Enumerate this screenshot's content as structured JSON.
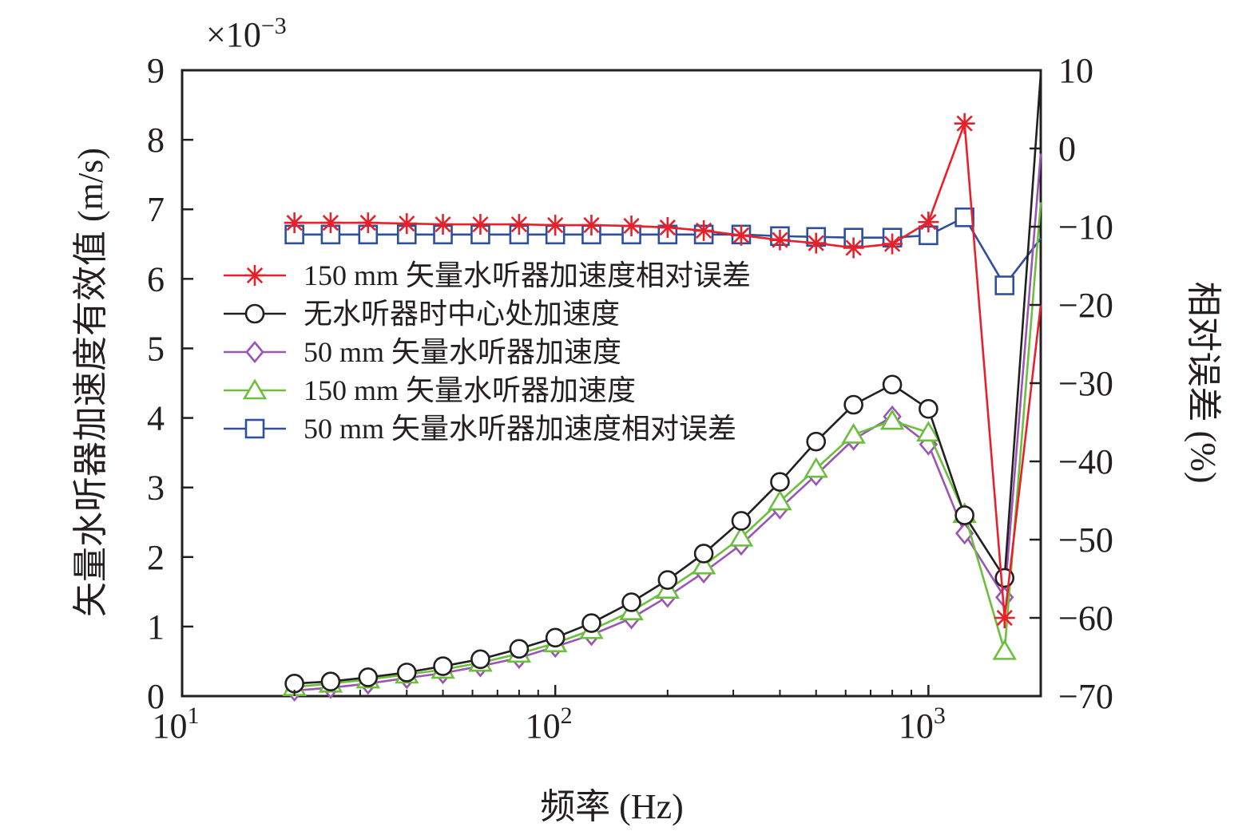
{
  "chart_data": {
    "type": "line",
    "xlabel": "频率 (Hz)",
    "ylabel_left": "矢量水听器加速度有效值 (m/s)",
    "ylabel_right": "相对误差 (%)",
    "y_left_multiplier": {
      "base": "×10",
      "exponent": "−3"
    },
    "x_scale": "log",
    "xlim": [
      10,
      2000
    ],
    "ylim_left": [
      0,
      9
    ],
    "ylim_right": [
      -70,
      10
    ],
    "x_ticks": [
      {
        "value": 10,
        "base": "10",
        "exp": "1"
      },
      {
        "value": 100,
        "base": "10",
        "exp": "2"
      },
      {
        "value": 1000,
        "base": "10",
        "exp": "3"
      }
    ],
    "y_left_ticks": [
      "0",
      "1",
      "2",
      "3",
      "4",
      "5",
      "6",
      "7",
      "8",
      "9"
    ],
    "y_right_ticks": [
      "10",
      "0",
      "−10",
      "−20",
      "−30",
      "−40",
      "−50",
      "−60",
      "−70"
    ],
    "y_right_tick_values": [
      10,
      0,
      -10,
      -20,
      -30,
      -40,
      -50,
      -60,
      -70
    ],
    "grid": false,
    "legend_placement": "center-left",
    "x": [
      20,
      25,
      31.5,
      40,
      50,
      63,
      80,
      100,
      125,
      160,
      200,
      250,
      315,
      400,
      500,
      630,
      800,
      1000,
      1250,
      1600,
      2000
    ],
    "series": [
      {
        "name": "150 mm 矢量水听器加速度相对误差",
        "axis": "right",
        "marker": "star",
        "color": "#e8202a",
        "values": [
          -9.5,
          -9.5,
          -9.5,
          -9.6,
          -9.7,
          -9.7,
          -9.7,
          -9.8,
          -9.8,
          -9.9,
          -10.1,
          -10.5,
          -11.1,
          -11.7,
          -12.1,
          -12.7,
          -12.2,
          -9.4,
          3.2,
          -60.0,
          -20.0
        ]
      },
      {
        "name": "无水听器时中心处加速度",
        "axis": "left",
        "marker": "circle",
        "color": "#231f20",
        "values": [
          0.18,
          0.21,
          0.27,
          0.34,
          0.43,
          0.53,
          0.68,
          0.84,
          1.05,
          1.35,
          1.67,
          2.05,
          2.52,
          3.08,
          3.66,
          4.19,
          4.48,
          4.13,
          2.6,
          1.7,
          8.95
        ]
      },
      {
        "name": "50 mm 矢量水听器加速度",
        "axis": "left",
        "marker": "diamond",
        "color": "#9b55b5",
        "values": [
          0.08,
          0.12,
          0.18,
          0.26,
          0.33,
          0.43,
          0.55,
          0.71,
          0.88,
          1.12,
          1.43,
          1.78,
          2.18,
          2.7,
          3.18,
          3.69,
          4.02,
          3.62,
          2.34,
          1.42,
          7.8
        ]
      },
      {
        "name": "150 mm 矢量水听器加速度",
        "axis": "left",
        "marker": "triangle",
        "color": "#6cbf3c",
        "values": [
          0.13,
          0.18,
          0.24,
          0.31,
          0.38,
          0.48,
          0.61,
          0.76,
          0.95,
          1.22,
          1.53,
          1.88,
          2.28,
          2.8,
          3.27,
          3.76,
          3.96,
          3.79,
          2.62,
          0.65,
          7.1
        ]
      },
      {
        "name": "50 mm 矢量水听器加速度相对误差",
        "axis": "right",
        "marker": "square",
        "color": "#2e4f9e",
        "values": [
          -11.0,
          -11.0,
          -11.0,
          -11.0,
          -11.0,
          -11.0,
          -11.0,
          -11.0,
          -11.0,
          -11.0,
          -11.0,
          -11.0,
          -11.0,
          -11.2,
          -11.3,
          -11.4,
          -11.4,
          -11.1,
          -8.8,
          -17.5,
          -11.5
        ]
      }
    ],
    "legend_order": [
      0,
      1,
      2,
      3,
      4
    ]
  }
}
